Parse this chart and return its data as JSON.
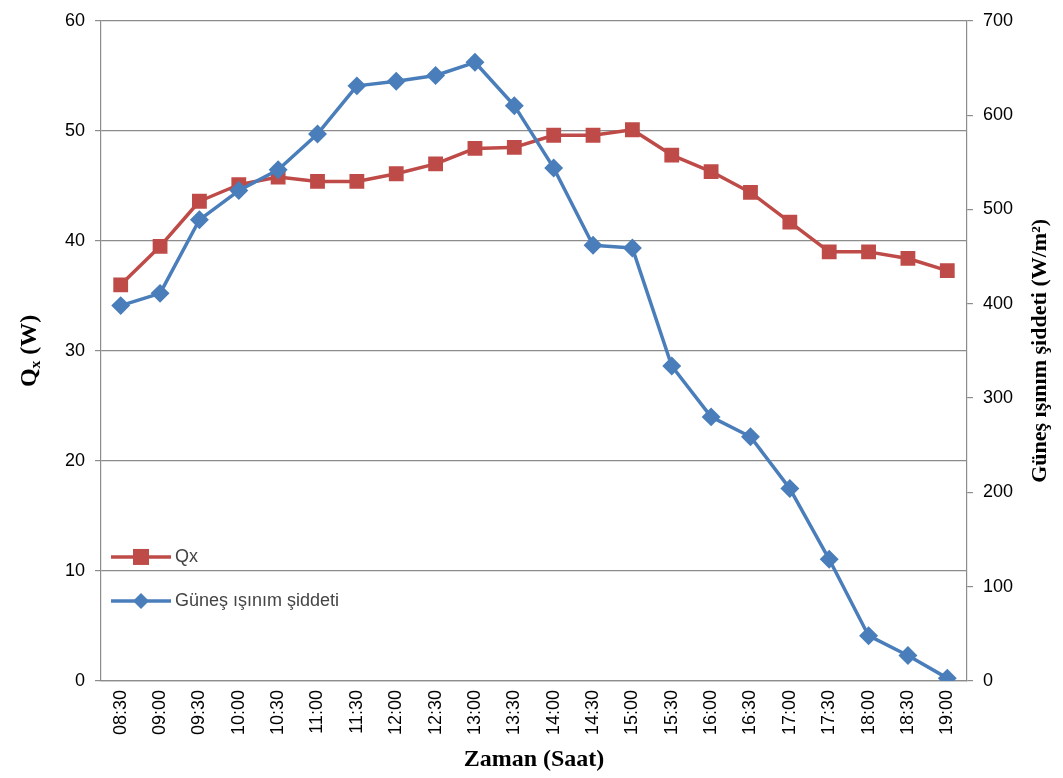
{
  "chart_data": {
    "type": "line",
    "xlabel": "Zaman (Saat)",
    "ylabel": "Q$_{x}$ (W)",
    "y2label": "Güneş ışınım şiddeti (W/m²)",
    "categories": [
      "08:30",
      "09:00",
      "09:30",
      "10:00",
      "10:30",
      "11:00",
      "11:30",
      "12:00",
      "12:30",
      "13:00",
      "13:30",
      "14:00",
      "14:30",
      "15:00",
      "15:30",
      "16:00",
      "16:30",
      "17:00",
      "17:30",
      "18:00",
      "18:30",
      "19:00"
    ],
    "series": [
      {
        "name": "Qx",
        "color": "#be4b48",
        "marker": "square",
        "values": [
          36.0,
          39.5,
          43.6,
          45.1,
          45.8,
          45.4,
          45.4,
          46.1,
          47.0,
          48.4,
          48.5,
          49.6,
          49.6,
          50.1,
          47.8,
          46.3,
          44.4,
          41.7,
          39.0,
          39.0,
          38.4,
          37.3
        ]
      },
      {
        "name": "Güneş ışınım şiddeti",
        "color": "#4a7ebb",
        "marker": "diamond",
        "axis": "y2",
        "values": [
          398,
          411,
          489,
          520,
          542,
          580,
          631,
          636,
          642,
          656,
          610,
          544,
          462,
          459,
          334,
          280,
          259,
          204,
          129,
          48,
          27,
          3
        ]
      }
    ],
    "ylim": [
      0,
      60
    ],
    "yticks": [
      0,
      10,
      20,
      30,
      40,
      50,
      60
    ],
    "y2lim": [
      0,
      700
    ],
    "y2ticks": [
      0,
      100,
      200,
      300,
      400,
      500,
      600,
      700
    ],
    "grid": "y",
    "legend": "bottom left",
    "line_style": "solid"
  }
}
